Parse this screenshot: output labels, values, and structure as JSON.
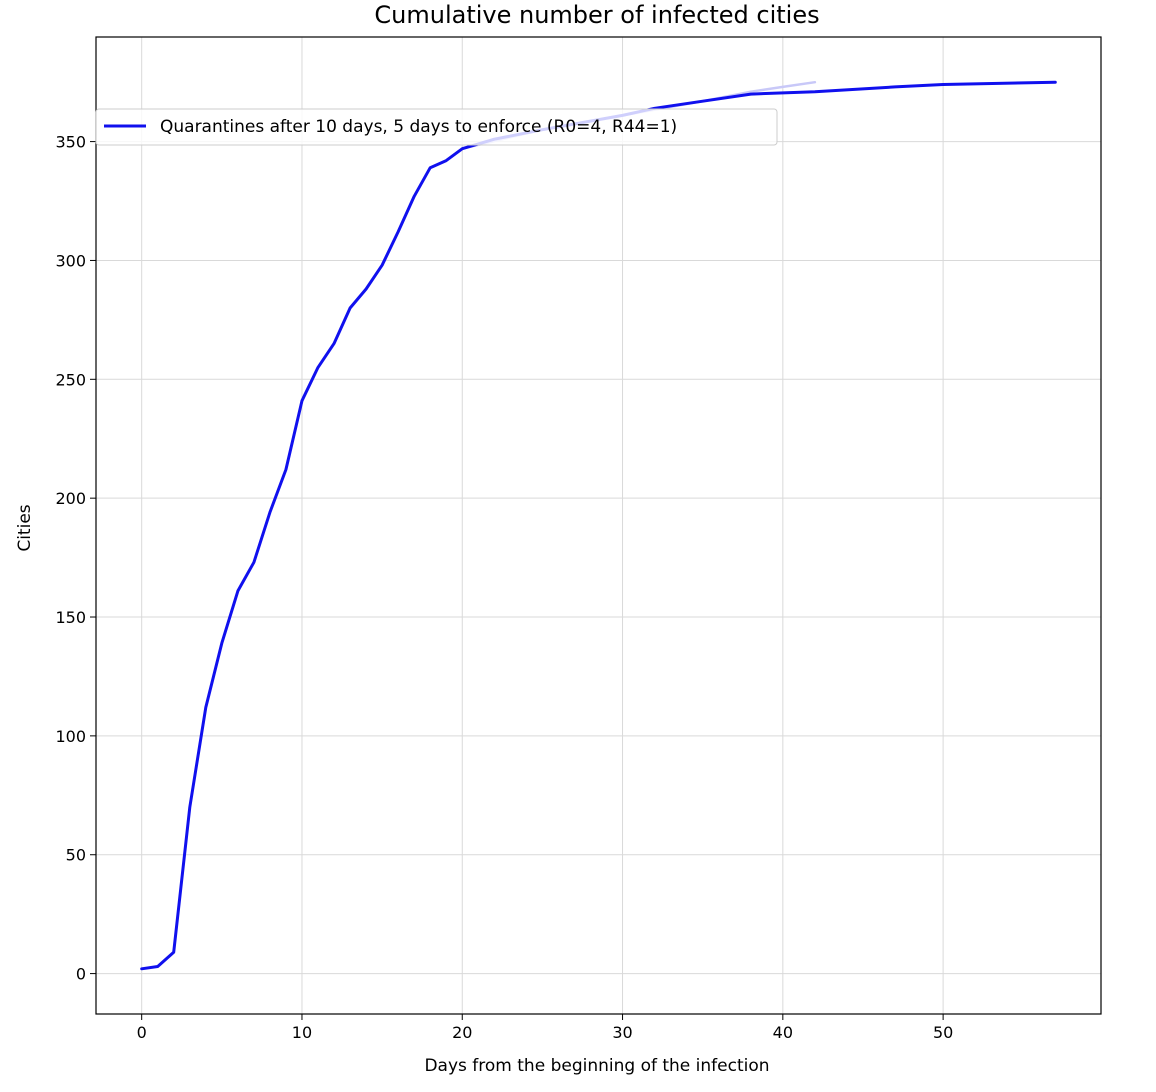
{
  "chart_data": {
    "type": "line",
    "title": "Cumulative number of infected cities",
    "xlabel": "Days from the beginning of the infection",
    "ylabel": "Cities",
    "xlim": [
      -2.85,
      59.85
    ],
    "ylim": [
      -17,
      394
    ],
    "xticks": [
      0,
      10,
      20,
      30,
      40,
      50
    ],
    "yticks": [
      0,
      50,
      100,
      150,
      200,
      250,
      300,
      350
    ],
    "grid": true,
    "legend_position": "upper-left",
    "series": [
      {
        "name": "Quarantines after 10 days, 5 days to enforce (R0=4, R44=1)",
        "color": "#1010ee",
        "x": [
          0,
          1,
          2,
          3,
          4,
          5,
          6,
          7,
          8,
          9,
          10,
          11,
          12,
          13,
          14,
          15,
          16,
          17,
          18,
          19,
          20,
          22,
          25,
          30,
          32,
          35,
          38,
          42,
          47,
          50,
          57
        ],
        "y": [
          2,
          3,
          9,
          70,
          112,
          139,
          161,
          173,
          194,
          212,
          241,
          255,
          265,
          280,
          288,
          298,
          312,
          327,
          339,
          342,
          347,
          351,
          355,
          361,
          364,
          367,
          370,
          371,
          373,
          374,
          375
        ]
      },
      {
        "name": "",
        "color": "#c8c8f8",
        "x": [
          20,
          25,
          30,
          35,
          38,
          40,
          42
        ],
        "y": [
          347,
          355,
          361,
          367,
          371,
          373,
          375
        ]
      }
    ]
  }
}
